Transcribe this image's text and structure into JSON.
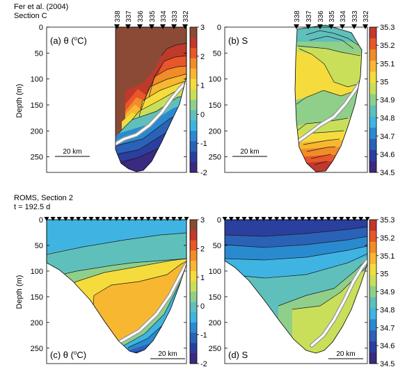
{
  "figure": {
    "top_header": [
      "Fer et al. (2004)",
      "Section C"
    ],
    "bottom_header": [
      "ROMS, Section 2",
      "t = 192.5 d"
    ],
    "ylabel": "Depth (m)",
    "depth_ticks": [
      "0",
      "50",
      "100",
      "150",
      "200",
      "250"
    ],
    "scale_label": "20 km",
    "station_labels": [
      "338",
      "337",
      "336",
      "335",
      "334",
      "333",
      "332"
    ]
  },
  "chart_data": [
    {
      "id": "a",
      "type": "heatmap",
      "title": "(a) θ (°C)",
      "title_parts": [
        "(a) θ (",
        "o",
        "C)"
      ],
      "source": "Fer et al. (2004) Section C",
      "ylabel": "Depth (m)",
      "ylim": [
        0,
        280
      ],
      "variable": "temperature",
      "colorbar": {
        "ticks": [
          "3",
          "2",
          "1",
          "0",
          "-1",
          "-2"
        ],
        "range": [
          -2,
          3
        ]
      },
      "stations": [
        "338",
        "337",
        "336",
        "335",
        "334",
        "333",
        "332"
      ],
      "levels": [
        {
          "value": 3.0,
          "color": "#8b4a35"
        },
        {
          "value": 2.7,
          "color": "#c0392b"
        },
        {
          "value": 2.4,
          "color": "#e8562a"
        },
        {
          "value": 2.1,
          "color": "#f28c28"
        },
        {
          "value": 1.8,
          "color": "#f7b731"
        },
        {
          "value": 1.5,
          "color": "#f5dc3c"
        },
        {
          "value": 1.2,
          "color": "#c9df5a"
        },
        {
          "value": 0.9,
          "color": "#8fcf8a"
        },
        {
          "value": 0.6,
          "color": "#5fc0bb"
        },
        {
          "value": 0.3,
          "color": "#3fb4e3"
        },
        {
          "value": 0.0,
          "color": "#2a8ad0"
        },
        {
          "value": -0.5,
          "color": "#2a62b8"
        },
        {
          "value": -1.0,
          "color": "#2b3f9e"
        },
        {
          "value": -1.5,
          "color": "#3a2a82"
        }
      ]
    },
    {
      "id": "b",
      "type": "heatmap",
      "title": "(b) S",
      "source": "Fer et al. (2004) Section C",
      "ylim": [
        0,
        280
      ],
      "variable": "salinity",
      "colorbar": {
        "ticks": [
          "35.3",
          "35.2",
          "35.1",
          "35",
          "34.9",
          "34.8",
          "34.7",
          "34.6",
          "34.5"
        ],
        "range": [
          34.5,
          35.3
        ]
      },
      "stations": [
        "338",
        "337",
        "336",
        "335",
        "334",
        "333",
        "332"
      ],
      "levels": [
        {
          "value": 35.3,
          "color": "#c0392b"
        },
        {
          "value": 35.2,
          "color": "#e8562a"
        },
        {
          "value": 35.15,
          "color": "#f28c28"
        },
        {
          "value": 35.1,
          "color": "#f7b731"
        },
        {
          "value": 35.05,
          "color": "#f5dc3c"
        },
        {
          "value": 35.0,
          "color": "#c9df5a"
        },
        {
          "value": 34.95,
          "color": "#8fcf8a"
        },
        {
          "value": 34.9,
          "color": "#5fc0bb"
        },
        {
          "value": 34.85,
          "color": "#3fb4e3"
        },
        {
          "value": 34.8,
          "color": "#2a8ad0"
        },
        {
          "value": 34.7,
          "color": "#2a62b8"
        },
        {
          "value": 34.6,
          "color": "#2b3f9e"
        }
      ]
    },
    {
      "id": "c",
      "type": "heatmap",
      "title": "(c) θ (°C)",
      "title_parts": [
        "(c) θ (",
        "o",
        "C)"
      ],
      "source": "ROMS, Section 2, t = 192.5 d",
      "ylabel": "Depth (m)",
      "ylim": [
        0,
        280
      ],
      "variable": "temperature",
      "colorbar": {
        "ticks": [
          "3",
          "2",
          "1",
          "0",
          "-1",
          "-2"
        ],
        "range": [
          -2,
          3
        ]
      },
      "levels": [
        {
          "value": 0.6,
          "color": "#3fb4e3"
        },
        {
          "value": 0.9,
          "color": "#5fc0bb"
        },
        {
          "value": 1.2,
          "color": "#8fcf8a"
        },
        {
          "value": 1.5,
          "color": "#f5dc3c"
        },
        {
          "value": 1.8,
          "color": "#f7b731"
        },
        {
          "value": 0.9,
          "color": "#8fcf8a"
        },
        {
          "value": 0.3,
          "color": "#3fb4e3"
        },
        {
          "value": 0.0,
          "color": "#2a8ad0"
        },
        {
          "value": -0.5,
          "color": "#2a62b8"
        },
        {
          "value": -1.0,
          "color": "#2b3f9e"
        }
      ]
    },
    {
      "id": "d",
      "type": "heatmap",
      "title": "(d) S",
      "source": "ROMS, Section 2, t = 192.5 d",
      "ylim": [
        0,
        280
      ],
      "variable": "salinity",
      "colorbar": {
        "ticks": [
          "35.3",
          "35.2",
          "35.1",
          "35",
          "34.9",
          "34.8",
          "34.7",
          "34.6",
          "34.5"
        ],
        "range": [
          34.5,
          35.3
        ]
      },
      "levels": [
        {
          "value": 34.6,
          "color": "#2b3f9e"
        },
        {
          "value": 34.7,
          "color": "#2a62b8"
        },
        {
          "value": 34.8,
          "color": "#2a8ad0"
        },
        {
          "value": 34.85,
          "color": "#3fb4e3"
        },
        {
          "value": 34.9,
          "color": "#5fc0bb"
        },
        {
          "value": 34.95,
          "color": "#8fcf8a"
        },
        {
          "value": 35.0,
          "color": "#c9df5a"
        }
      ]
    }
  ]
}
